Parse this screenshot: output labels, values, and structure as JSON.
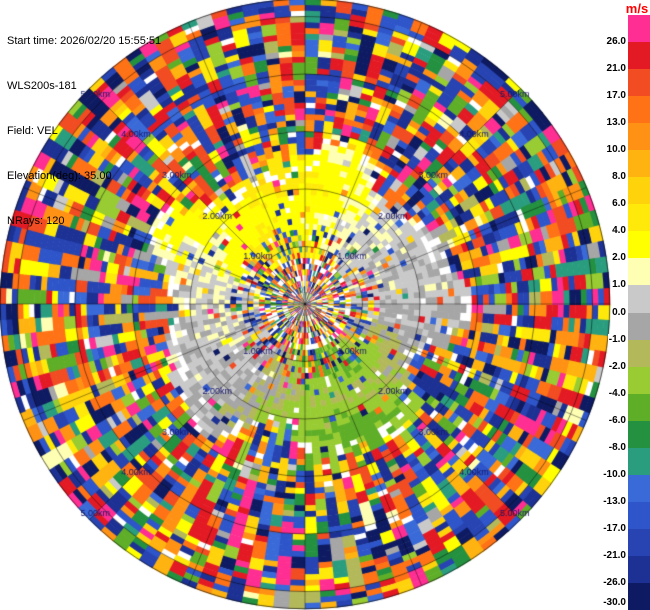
{
  "figure": {
    "info_lines": [
      "Start time: 2026/02/20 15:55:51",
      "WLS200s-181",
      "Field: VEL",
      "Elevation(deg): 35.00",
      "NRays: 120"
    ]
  },
  "colorbar": {
    "unit": "m/s",
    "unit_color": "#ff0000",
    "ticks": [
      "26.0",
      "21.0",
      "17.0",
      "13.0",
      "10.0",
      "8.0",
      "6.0",
      "4.0",
      "2.0",
      "1.0",
      "0.0",
      "-1.0",
      "-2.0",
      "-4.0",
      "-6.0",
      "-8.0",
      "-10.0",
      "-13.0",
      "-17.0",
      "-21.0",
      "-26.0",
      "-30.0"
    ]
  },
  "chart_data": {
    "type": "heatmap",
    "projection": "polar",
    "field": "VEL",
    "units": "m/s",
    "start_time": "2026/02/20 15:55:51",
    "instrument": "WLS200s-181",
    "elevation_deg": 35.0,
    "n_rays": 120,
    "gate_km": 0.1,
    "max_range_km": 5.3,
    "range_rings_km": [
      1,
      2,
      3,
      4,
      5
    ],
    "ring_labels": [
      "1.00km",
      "2.00km",
      "3.00km",
      "4.00km",
      "5.00km"
    ],
    "ring_label_azimuths_deg": [
      -45,
      -135,
      45,
      135
    ],
    "ring_label_color": "#16166b",
    "grid": {
      "color": "#000000",
      "spoke_step_deg": 22.5
    },
    "colormap": {
      "boundaries": [
        30,
        26,
        21,
        17,
        13,
        10,
        8,
        6,
        4,
        2,
        1,
        0,
        -1,
        -2,
        -4,
        -6,
        -8,
        -10,
        -13,
        -17,
        -21,
        -26,
        -30
      ],
      "colors": [
        "#ff2e92",
        "#e31a24",
        "#f14c22",
        "#ff7216",
        "#ff9214",
        "#ffb310",
        "#ffd30c",
        "#ffe90a",
        "#ffff00",
        "#ffffb4",
        "#c9c9c9",
        "#a6a6a6",
        "#b3b95a",
        "#98cc32",
        "#5fae28",
        "#23913f",
        "#2a9d7f",
        "#3a6ad8",
        "#2e55c9",
        "#2744b2",
        "#1c3193",
        "#0e1b62"
      ],
      "no_data_color": "#ffffff"
    },
    "pattern": {
      "description": "Doppler velocity PPI. Coherent wind field between ~0.8 km and ~2.5 km: positive (yellow, ~+2 to +6 m/s) toward the upper left / NNW, near-zero (gray) toward the east, negative (green, ~-2 to -5 m/s) toward the south. Inside ~0.8 km and outside ~2.5 km the returns are uniformly random multicolour noise spanning the full ±30 m/s scale with scattered white no-data gaps, producing dense speckle rings; the coherent/noise boundary is jagged with white gaps.",
      "seed": 20260220,
      "inner_noise_radius_km": 0.78,
      "outer_noise_radius_km": 2.55,
      "boundary_wobble_km": [
        0.3,
        0.16
      ],
      "dipole_amplitude_ms": 4.6,
      "dipole_offset_ms": 0.3,
      "dipole_max_azimuth_deg": -110,
      "mid_speckle_fraction": 0.1,
      "inner_band_speckle_fraction": 0.42,
      "inner_band_radius_km": 1.3,
      "edge_white_fraction": 0.3,
      "outer_streak_persistence": 0.38,
      "center_white_fraction": 0.3,
      "jitter_ms": 0.9
    }
  }
}
